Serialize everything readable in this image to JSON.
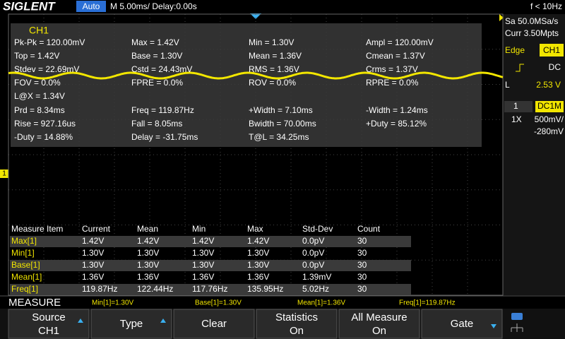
{
  "header": {
    "brand": "SIGLENT",
    "mode": "Auto",
    "timebase": "M 5.00ms/ Delay:0.00s",
    "frequency": "f < 10Hz"
  },
  "side_panel": {
    "sample_rate": "Sa 50.0MSa/s",
    "memory": "Curr 3.50Mpts",
    "trigger_type": "Edge",
    "trigger_source": "CH1",
    "coupling": "DC",
    "level_label": "L",
    "level": "2.53 V",
    "channel": "1",
    "channel_coupling": "DC1M",
    "probe": "1X",
    "scale": "500mV/",
    "offset": "-280mV"
  },
  "channel_marker": "1",
  "measurement": {
    "channel": "CH1",
    "rows": [
      [
        "Pk-Pk = 120.00mV",
        "Max = 1.42V",
        "Min = 1.30V",
        "Ampl = 120.00mV"
      ],
      [
        "Top = 1.42V",
        "Base = 1.30V",
        "Mean = 1.36V",
        "Cmean = 1.37V"
      ],
      [
        "Stdev = 22.69mV",
        "Cstd = 24.43mV",
        "RMS = 1.36V",
        "Crms = 1.37V"
      ],
      [
        "FOV = 0.0%",
        "FPRE = 0.0%",
        "ROV = 0.0%",
        "RPRE = 0.0%"
      ],
      [
        "L@X = 1.34V"
      ],
      [
        "Prd = 8.34ms",
        "Freq = 119.87Hz",
        "+Width = 7.10ms",
        "-Width = 1.24ms"
      ],
      [
        "Rise = 927.16us",
        "Fall = 8.05ms",
        "Bwidth = 70.00ms",
        "+Duty = 85.12%"
      ],
      [
        "-Duty = 14.88%",
        "Delay = -31.75ms",
        "T@L = 34.25ms"
      ]
    ]
  },
  "statistics": {
    "columns": [
      "Measure Item",
      "Current",
      "Mean",
      "Min",
      "Max",
      "Std-Dev",
      "Count"
    ],
    "rows": [
      [
        "Max[1]",
        "1.42V",
        "1.42V",
        "1.42V",
        "1.42V",
        "0.0pV",
        "30"
      ],
      [
        "Min[1]",
        "1.30V",
        "1.30V",
        "1.30V",
        "1.30V",
        "0.0pV",
        "30"
      ],
      [
        "Base[1]",
        "1.30V",
        "1.30V",
        "1.30V",
        "1.30V",
        "0.0pV",
        "30"
      ],
      [
        "Mean[1]",
        "1.36V",
        "1.36V",
        "1.36V",
        "1.36V",
        "1.39mV",
        "30"
      ],
      [
        "Freq[1]",
        "119.87Hz",
        "122.44Hz",
        "117.76Hz",
        "135.95Hz",
        "5.02Hz",
        "30"
      ]
    ]
  },
  "status": {
    "label": "MEASURE",
    "items": [
      "Min[1]=1.30V",
      "Base[1]=1.30V",
      "Mean[1]=1.36V",
      "Freq[1]=119.87Hz"
    ]
  },
  "softkeys": [
    {
      "label": "Source",
      "value": "CH1"
    },
    {
      "label": "Type"
    },
    {
      "label": "Clear"
    },
    {
      "label": "Statistics",
      "value": "On"
    },
    {
      "label": "All Measure",
      "value": "On"
    },
    {
      "label": "Gate"
    }
  ]
}
